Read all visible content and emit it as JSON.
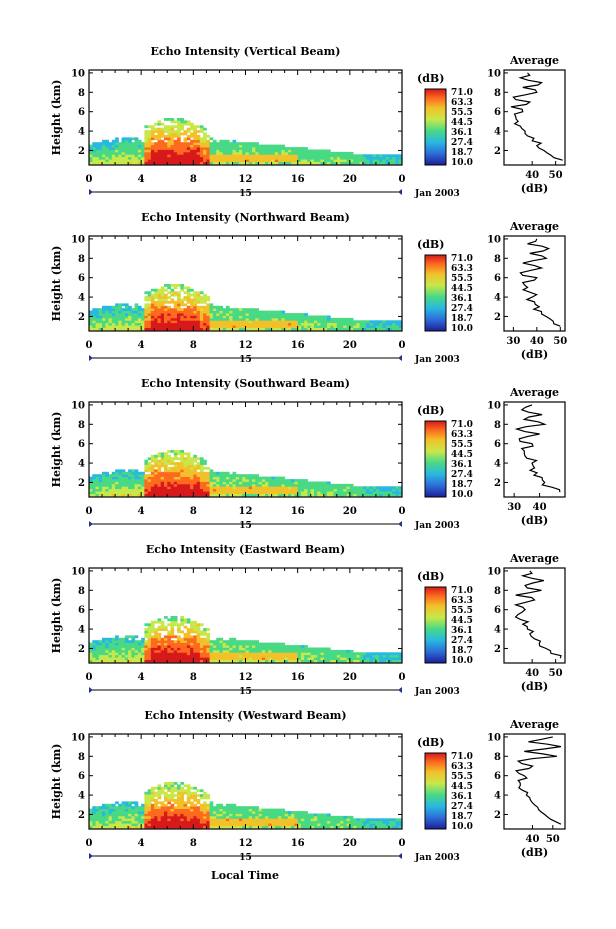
{
  "figure": {
    "xlabel": "Local Time",
    "date_label": "Jan 2003",
    "day_label": "15",
    "colorbar_unit": "(dB)",
    "colorbar_ticks": [
      "71.0",
      "63.3",
      "55.5",
      "44.5",
      "36.1",
      "27.4",
      "18.7",
      "10.0"
    ],
    "colorbar_colors": [
      "#d7191c",
      "#fd6a1f",
      "#f2c12a",
      "#c8e84a",
      "#49d985",
      "#29b8e0",
      "#2d6cd8",
      "#1c1f96"
    ],
    "avg_title": "Average",
    "avg_xlabel": "(dB)",
    "height_label": "Height (km)"
  },
  "chart_data": [
    {
      "type": "heatmap",
      "title": "Echo Intensity (Vertical Beam)",
      "xlabel": "Local Time",
      "ylabel": "Height (km)",
      "x_ticks": [
        "0",
        "4",
        "8",
        "12",
        "16",
        "20",
        "0"
      ],
      "y_ticks": [
        "2",
        "4",
        "6",
        "8",
        "10"
      ],
      "xlim": [
        0,
        24
      ],
      "ylim": [
        0.5,
        10.3
      ],
      "unit": "dB",
      "color_range": [
        10.0,
        71.0
      ],
      "average_profile": {
        "title": "Average",
        "xlabel": "(dB)",
        "x_ticks": [
          "40",
          "50"
        ],
        "xlim": [
          28,
          54
        ],
        "height": [
          1.0,
          1.5,
          2.0,
          2.5,
          3.0,
          3.5,
          4.0,
          4.5,
          5.0,
          5.5,
          6.0,
          6.5,
          7.0,
          7.5,
          8.0,
          8.5,
          9.0,
          9.5,
          10.0
        ],
        "values": [
          53,
          48,
          45,
          42,
          40,
          38,
          37,
          35,
          34,
          33,
          36,
          31,
          39,
          32,
          42,
          36,
          44,
          35,
          38
        ]
      }
    },
    {
      "type": "heatmap",
      "title": "Echo Intensity (Northward Beam)",
      "xlabel": "Local Time",
      "ylabel": "Height (km)",
      "x_ticks": [
        "0",
        "4",
        "8",
        "12",
        "16",
        "20",
        "0"
      ],
      "y_ticks": [
        "2",
        "4",
        "6",
        "8",
        "10"
      ],
      "xlim": [
        0,
        24
      ],
      "ylim": [
        0.5,
        10.3
      ],
      "unit": "dB",
      "color_range": [
        10.0,
        71.0
      ],
      "average_profile": {
        "title": "Average",
        "xlabel": "(dB)",
        "x_ticks": [
          "30",
          "40",
          "50"
        ],
        "xlim": [
          26,
          52
        ],
        "height": [
          1.0,
          1.5,
          2.0,
          2.5,
          3.0,
          3.5,
          4.0,
          4.5,
          5.0,
          5.5,
          6.0,
          6.5,
          7.0,
          7.5,
          8.0,
          8.5,
          9.0,
          9.5,
          10.0
        ],
        "values": [
          50,
          47,
          44,
          42,
          41,
          39,
          38,
          37,
          36,
          34,
          40,
          33,
          42,
          34,
          44,
          37,
          45,
          36,
          40
        ]
      }
    },
    {
      "type": "heatmap",
      "title": "Echo Intensity (Southward Beam)",
      "xlabel": "Local Time",
      "ylabel": "Height (km)",
      "x_ticks": [
        "0",
        "4",
        "8",
        "12",
        "16",
        "20",
        "0"
      ],
      "y_ticks": [
        "2",
        "4",
        "6",
        "8",
        "10"
      ],
      "xlim": [
        0,
        24
      ],
      "ylim": [
        0.5,
        10.3
      ],
      "unit": "dB",
      "color_range": [
        10.0,
        71.0
      ],
      "average_profile": {
        "title": "Average",
        "xlabel": "(dB)",
        "x_ticks": [
          "30",
          "40"
        ],
        "xlim": [
          26,
          50
        ],
        "height": [
          1.0,
          1.5,
          2.0,
          2.5,
          3.0,
          3.5,
          4.0,
          4.5,
          5.0,
          5.5,
          6.0,
          6.5,
          7.0,
          7.5,
          8.0,
          8.5,
          9.0,
          9.5,
          10.0
        ],
        "values": [
          48,
          45,
          42,
          41,
          39,
          38,
          37,
          35,
          34,
          33,
          37,
          32,
          40,
          31,
          42,
          34,
          41,
          33,
          37
        ]
      }
    },
    {
      "type": "heatmap",
      "title": "Echo Intensity (Eastward Beam)",
      "xlabel": "Local Time",
      "ylabel": "Height (km)",
      "x_ticks": [
        "0",
        "4",
        "8",
        "12",
        "16",
        "20",
        "0"
      ],
      "y_ticks": [
        "2",
        "4",
        "6",
        "8",
        "10"
      ],
      "xlim": [
        0,
        24
      ],
      "ylim": [
        0.5,
        10.3
      ],
      "unit": "dB",
      "color_range": [
        10.0,
        71.0
      ],
      "average_profile": {
        "title": "Average",
        "xlabel": "(dB)",
        "x_ticks": [
          "40",
          "50"
        ],
        "xlim": [
          28,
          54
        ],
        "height": [
          1.0,
          1.5,
          2.0,
          2.5,
          3.0,
          3.5,
          4.0,
          4.5,
          5.0,
          5.5,
          6.0,
          6.5,
          7.0,
          7.5,
          8.0,
          8.5,
          9.0,
          9.5,
          10.0
        ],
        "values": [
          52,
          48,
          46,
          43,
          41,
          39,
          38,
          36,
          35,
          34,
          37,
          33,
          41,
          33,
          44,
          37,
          45,
          36,
          39
        ]
      }
    },
    {
      "type": "heatmap",
      "title": "Echo Intensity (Westward Beam)",
      "xlabel": "Local Time",
      "ylabel": "Height (km)",
      "x_ticks": [
        "0",
        "4",
        "8",
        "12",
        "16",
        "20",
        "0"
      ],
      "y_ticks": [
        "2",
        "4",
        "6",
        "8",
        "10"
      ],
      "xlim": [
        0,
        24
      ],
      "ylim": [
        0.5,
        10.3
      ],
      "unit": "dB",
      "color_range": [
        10.0,
        71.0
      ],
      "average_profile": {
        "title": "Average",
        "xlabel": "(dB)",
        "x_ticks": [
          "40",
          "50"
        ],
        "xlim": [
          26,
          56
        ],
        "height": [
          1.0,
          1.5,
          2.0,
          2.5,
          3.0,
          3.5,
          4.0,
          4.5,
          5.0,
          5.5,
          6.0,
          6.5,
          7.0,
          7.5,
          8.0,
          8.5,
          9.0,
          9.5,
          10.0
        ],
        "values": [
          54,
          49,
          46,
          43,
          41,
          39,
          37,
          35,
          34,
          33,
          36,
          32,
          40,
          33,
          52,
          36,
          54,
          38,
          50
        ]
      }
    }
  ]
}
